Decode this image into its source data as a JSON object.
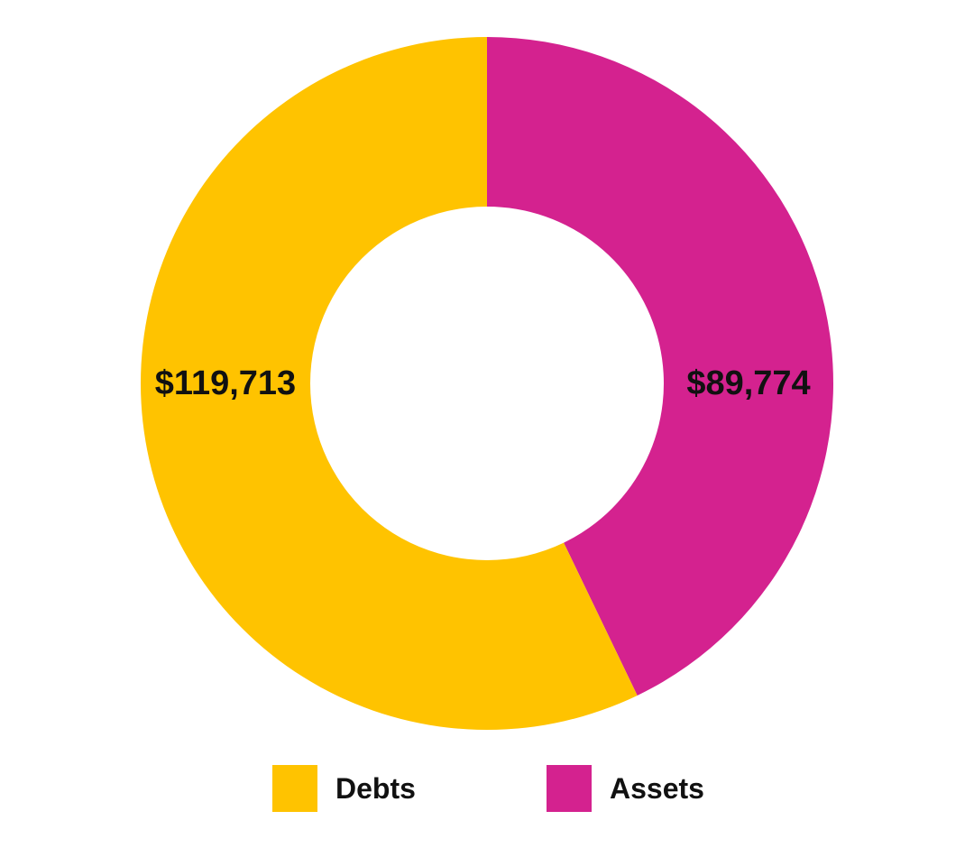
{
  "chart_data": {
    "type": "pie",
    "donut": true,
    "slices": [
      {
        "name": "Assets",
        "value": 89774,
        "label": "$89,774",
        "color": "#D4228F"
      },
      {
        "name": "Debts",
        "value": 119713,
        "label": "$119,713",
        "color": "#FFC300"
      }
    ],
    "legend": {
      "placement": "bottom",
      "entries": [
        {
          "name": "Debts",
          "color": "#FFC300"
        },
        {
          "name": "Assets",
          "color": "#D4228F"
        }
      ]
    }
  }
}
